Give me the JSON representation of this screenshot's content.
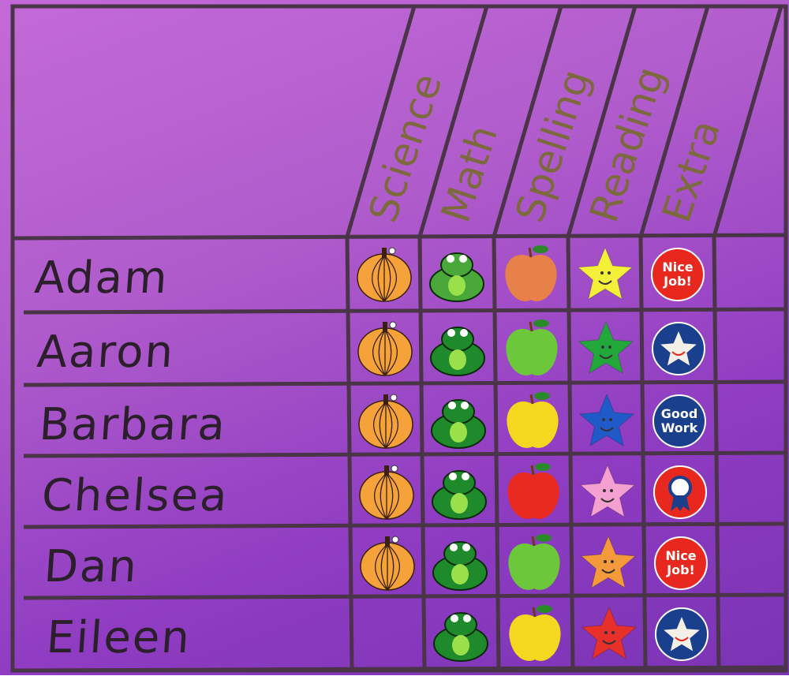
{
  "columns": [
    "Science",
    "Math",
    "Spelling",
    "Reading",
    "Extra"
  ],
  "rows": [
    {
      "name": "Adam",
      "stickers": [
        {
          "type": "pumpkin"
        },
        {
          "type": "frog",
          "color": "#4aa83a"
        },
        {
          "type": "apple",
          "color": "#e8804a"
        },
        {
          "type": "star",
          "color": "#f4f03a"
        },
        {
          "type": "badge",
          "color": "#e8281e",
          "text": "Nice Job!"
        }
      ]
    },
    {
      "name": "Aaron",
      "stickers": [
        {
          "type": "pumpkin"
        },
        {
          "type": "frog",
          "color": "#1f8a2c"
        },
        {
          "type": "apple",
          "color": "#6cc83a"
        },
        {
          "type": "star",
          "color": "#22a83a"
        },
        {
          "type": "badge-star",
          "color": "#1a3f8c"
        }
      ]
    },
    {
      "name": "Barbara",
      "stickers": [
        {
          "type": "pumpkin"
        },
        {
          "type": "frog",
          "color": "#1f8a2c"
        },
        {
          "type": "apple",
          "color": "#f4d820"
        },
        {
          "type": "star",
          "color": "#1f5ac8"
        },
        {
          "type": "badge",
          "color": "#1a3f8c",
          "text": "Good Work"
        }
      ]
    },
    {
      "name": "Chelsea",
      "stickers": [
        {
          "type": "pumpkin"
        },
        {
          "type": "frog",
          "color": "#1f8a2c"
        },
        {
          "type": "apple",
          "color": "#e82a20"
        },
        {
          "type": "star",
          "color": "#f4a0d0"
        },
        {
          "type": "badge-ribbon",
          "color": "#e8281e"
        }
      ]
    },
    {
      "name": "Dan",
      "stickers": [
        {
          "type": "pumpkin"
        },
        {
          "type": "frog",
          "color": "#1f8a2c"
        },
        {
          "type": "apple",
          "color": "#6cc83a"
        },
        {
          "type": "star",
          "color": "#f49a3a"
        },
        {
          "type": "badge",
          "color": "#e8281e",
          "text": "Nice Job!"
        }
      ]
    },
    {
      "name": "Eileen",
      "stickers": [
        null,
        {
          "type": "frog",
          "color": "#1f8a2c"
        },
        {
          "type": "apple",
          "color": "#f4d820"
        },
        {
          "type": "star",
          "color": "#e8302a"
        },
        {
          "type": "badge-star",
          "color": "#1a3f8c"
        }
      ]
    }
  ]
}
